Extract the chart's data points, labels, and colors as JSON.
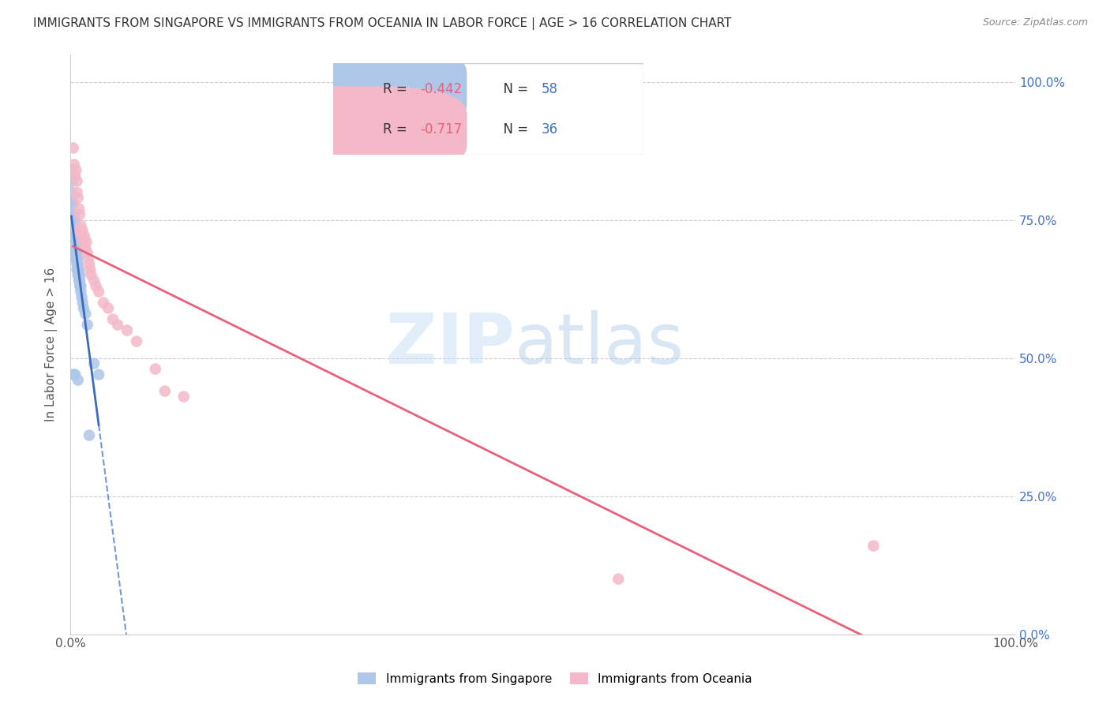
{
  "title": "IMMIGRANTS FROM SINGAPORE VS IMMIGRANTS FROM OCEANIA IN LABOR FORCE | AGE > 16 CORRELATION CHART",
  "source": "Source: ZipAtlas.com",
  "ylabel": "In Labor Force | Age > 16",
  "xlim": [
    0.0,
    1.0
  ],
  "ylim": [
    0.0,
    1.05
  ],
  "yticks": [
    0.0,
    0.25,
    0.5,
    0.75,
    1.0
  ],
  "xticks": [
    0.0,
    0.2,
    0.4,
    0.6,
    0.8,
    1.0
  ],
  "xtick_labels": [
    "0.0%",
    "",
    "",
    "",
    "",
    "100.0%"
  ],
  "ytick_labels_right": [
    "0.0%",
    "25.0%",
    "50.0%",
    "75.0%",
    "100.0%"
  ],
  "watermark_zip": "ZIP",
  "watermark_atlas": "atlas",
  "legend_label1": "Immigrants from Singapore",
  "legend_label2": "Immigrants from Oceania",
  "R_singapore": -0.442,
  "N_singapore": 58,
  "R_oceania": -0.717,
  "N_oceania": 36,
  "color_singapore": "#aec6e8",
  "color_singapore_line": "#3a6bbf",
  "color_oceania": "#f4b8c8",
  "color_oceania_line": "#e8607a",
  "background_color": "#ffffff",
  "grid_color": "#cccccc",
  "title_color": "#333333",
  "right_axis_color": "#4472c4",
  "singapore_x": [
    0.001,
    0.001,
    0.002,
    0.002,
    0.002,
    0.003,
    0.003,
    0.003,
    0.003,
    0.003,
    0.004,
    0.004,
    0.004,
    0.004,
    0.004,
    0.004,
    0.004,
    0.005,
    0.005,
    0.005,
    0.005,
    0.005,
    0.005,
    0.005,
    0.005,
    0.006,
    0.006,
    0.006,
    0.006,
    0.006,
    0.007,
    0.007,
    0.007,
    0.007,
    0.007,
    0.008,
    0.008,
    0.008,
    0.008,
    0.009,
    0.009,
    0.009,
    0.01,
    0.01,
    0.01,
    0.011,
    0.011,
    0.012,
    0.013,
    0.014,
    0.016,
    0.018,
    0.025,
    0.03,
    0.003,
    0.005,
    0.008,
    0.02
  ],
  "singapore_y": [
    0.84,
    0.8,
    0.84,
    0.82,
    0.78,
    0.78,
    0.76,
    0.75,
    0.74,
    0.73,
    0.76,
    0.75,
    0.74,
    0.73,
    0.72,
    0.71,
    0.7,
    0.75,
    0.74,
    0.73,
    0.72,
    0.71,
    0.7,
    0.69,
    0.68,
    0.72,
    0.71,
    0.7,
    0.69,
    0.68,
    0.7,
    0.69,
    0.68,
    0.67,
    0.66,
    0.68,
    0.67,
    0.66,
    0.65,
    0.66,
    0.65,
    0.64,
    0.65,
    0.64,
    0.63,
    0.63,
    0.62,
    0.61,
    0.6,
    0.59,
    0.58,
    0.56,
    0.49,
    0.47,
    0.47,
    0.47,
    0.46,
    0.36
  ],
  "oceania_x": [
    0.003,
    0.004,
    0.005,
    0.006,
    0.007,
    0.007,
    0.008,
    0.009,
    0.01,
    0.01,
    0.011,
    0.012,
    0.013,
    0.014,
    0.015,
    0.016,
    0.017,
    0.018,
    0.019,
    0.02,
    0.021,
    0.022,
    0.025,
    0.027,
    0.03,
    0.035,
    0.04,
    0.045,
    0.05,
    0.06,
    0.07,
    0.09,
    0.12,
    0.58,
    0.85,
    0.1
  ],
  "oceania_y": [
    0.88,
    0.85,
    0.83,
    0.84,
    0.82,
    0.8,
    0.79,
    0.77,
    0.76,
    0.73,
    0.74,
    0.72,
    0.73,
    0.71,
    0.72,
    0.7,
    0.71,
    0.69,
    0.68,
    0.67,
    0.66,
    0.65,
    0.64,
    0.63,
    0.62,
    0.6,
    0.59,
    0.57,
    0.56,
    0.55,
    0.53,
    0.48,
    0.43,
    0.1,
    0.16,
    0.44
  ],
  "singapore_line_x0": 0.001,
  "singapore_line_x1": 0.03,
  "singapore_line_xdash_end": 0.14,
  "oceania_line_x0": 0.003,
  "oceania_line_x1": 1.0
}
